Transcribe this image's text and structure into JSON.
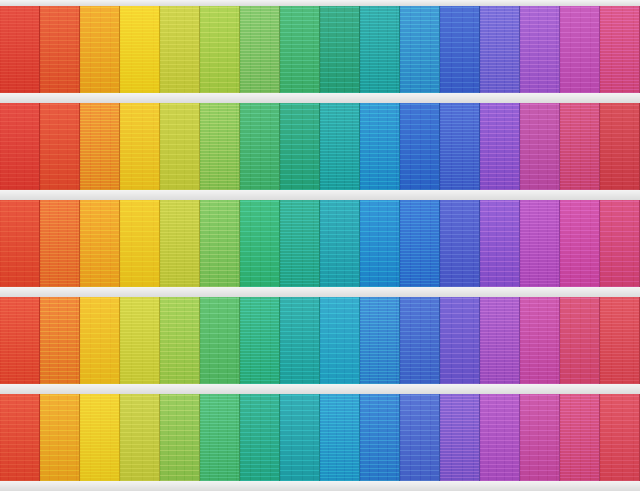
{
  "scene": {
    "description_colors": {
      "shelf": "#eeeeee",
      "background": "#cfcfcf"
    },
    "rows": [
      {
        "panels": [
          "#e23a2c",
          "#e8522a",
          "#f2a51c",
          "#f6d21a",
          "#c9cf3a",
          "#a7cf43",
          "#76c25c",
          "#3db46c",
          "#27a37a",
          "#1fa2a0",
          "#2d8fd0",
          "#3a5fcf",
          "#6b5ed6",
          "#a055cf",
          "#c24bb6",
          "#d8467e"
        ]
      },
      {
        "panels": [
          "#e2392f",
          "#e6492c",
          "#f08b22",
          "#f2c51d",
          "#c6cd39",
          "#86c64f",
          "#3fb36a",
          "#26a77c",
          "#1da2a1",
          "#1f8ecf",
          "#2c66cf",
          "#3e5ed0",
          "#8a4fd0",
          "#bf4aa6",
          "#d24374",
          "#d33c48"
        ]
      },
      {
        "panels": [
          "#e6442a",
          "#ee6a28",
          "#f4a41e",
          "#f2c81b",
          "#c4cc38",
          "#79c556",
          "#2fb774",
          "#23a98a",
          "#1fa2b0",
          "#1e8ad2",
          "#2a6ed3",
          "#4a59cf",
          "#8a50d2",
          "#b349c0",
          "#cf44a4",
          "#d74277"
        ]
      },
      {
        "panels": [
          "#e7432c",
          "#ef7b26",
          "#f3bf1d",
          "#cfd135",
          "#9ccc48",
          "#52bc63",
          "#2ab17c",
          "#1fa6a2",
          "#21a3c7",
          "#2d83d2",
          "#3e66d0",
          "#6b55d1",
          "#a24ec6",
          "#c848a6",
          "#d7456f",
          "#dd4350"
        ]
      },
      {
        "panels": [
          "#e6442d",
          "#f0a61e",
          "#f2cd1d",
          "#c6cc3a",
          "#8ec64c",
          "#42b86c",
          "#24ab86",
          "#1fa3ab",
          "#2097cc",
          "#2a7cd1",
          "#4665d0",
          "#7b54cf",
          "#ad4dc4",
          "#c748a2",
          "#d6457a",
          "#dd4355"
        ]
      }
    ]
  }
}
